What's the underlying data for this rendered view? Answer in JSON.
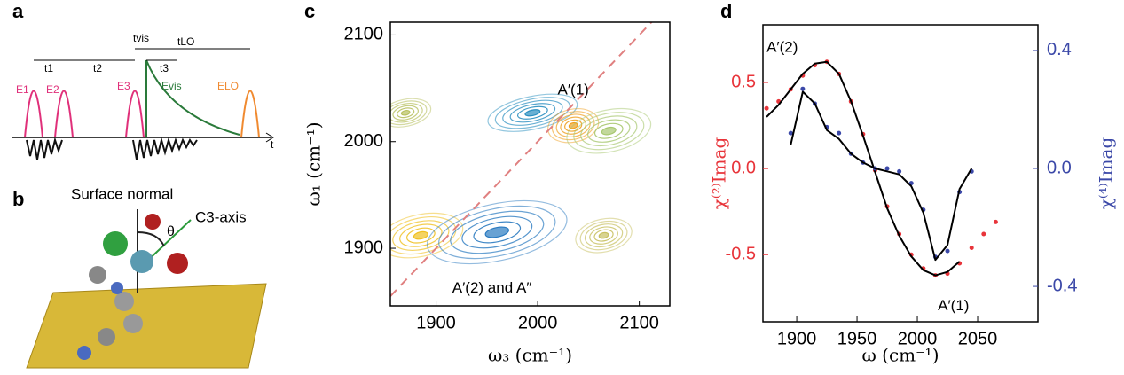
{
  "diagram": {
    "panel_a": {
      "label": "a",
      "t1": "t1",
      "t2": "t2",
      "t3": "t3",
      "tvis": "tvis",
      "tLO": "tLO",
      "E1": "E1",
      "E2": "E2",
      "E3": "E3",
      "Evis": "Evis",
      "ELO": "ELO",
      "t": "t"
    },
    "panel_b": {
      "label": "b",
      "surface_normal": "Surface normal",
      "c3_axis": "C3-axis",
      "theta": "θ"
    }
  },
  "chart_data": [
    {
      "type": "contour",
      "panel": "c",
      "x_label": "ω₃ (cm⁻¹)",
      "y_label": "ω₁ (cm⁻¹)",
      "xlim": [
        1855,
        2130
      ],
      "ylim": [
        1846,
        2112
      ],
      "xticks": [
        1900,
        2000,
        2100
      ],
      "yticks": [
        1900,
        2000,
        2100
      ],
      "diagonal": {
        "color": "#e08080"
      },
      "peaks": [
        {
          "x": 1995,
          "y": 2027,
          "sx": 32,
          "sy": 11,
          "color": "#2a8fc0"
        },
        {
          "x": 2035,
          "y": 2015,
          "sx": 18,
          "sy": 11,
          "color": "#f0a020"
        },
        {
          "x": 1870,
          "y": 2027,
          "sx": 18,
          "sy": 9,
          "color": "#b8c060"
        },
        {
          "x": 2070,
          "y": 2010,
          "sx": 30,
          "sy": 14,
          "color": "#a8c870"
        },
        {
          "x": 1885,
          "y": 1912,
          "sx": 30,
          "sy": 14,
          "color": "#f0c020"
        },
        {
          "x": 1960,
          "y": 1915,
          "sx": 50,
          "sy": 19,
          "color": "#2a7ac0"
        },
        {
          "x": 2065,
          "y": 1912,
          "sx": 20,
          "sy": 11,
          "color": "#c8c060"
        }
      ],
      "annotations": [
        {
          "text": "A′(1)",
          "x": 2035,
          "y": 2048
        },
        {
          "text": "A′(2) and A″",
          "x": 1955,
          "y": 1862
        }
      ]
    },
    {
      "type": "line",
      "panel": "d",
      "x_label": "ω (cm⁻¹)",
      "y_label": "χ⁽²⁾Imag",
      "y2_label": "χ⁽⁴⁾Imag",
      "xlim": [
        1872,
        2100
      ],
      "ylim": [
        -0.89,
        0.835
      ],
      "y2lim": [
        -0.52,
        0.487
      ],
      "xticks": [
        1900,
        1950,
        2000,
        2050
      ],
      "yticks": [
        0.5,
        {
          "value": 0,
          "label": "0.0"
        },
        -0.5
      ],
      "y2ticks": [
        0.4,
        {
          "value": 0,
          "label": "0.0"
        },
        -0.4
      ],
      "y_color": "#e8343a",
      "y2_color": "#3b48a8",
      "x": [
        1875,
        1885,
        1895,
        1905,
        1915,
        1925,
        1935,
        1945,
        1955,
        1965,
        1975,
        1985,
        1995,
        2005,
        2015,
        2025,
        2035,
        2045,
        2055,
        2065
      ],
      "series": [
        {
          "color": "#e8343a",
          "style": "dots",
          "values": [
            0.35,
            0.39,
            0.46,
            0.54,
            0.6,
            0.62,
            0.55,
            0.39,
            0.2,
            -0.01,
            -0.22,
            -0.38,
            -0.5,
            -0.58,
            -0.62,
            -0.61,
            -0.55,
            -0.46,
            -0.38,
            -0.31
          ]
        },
        {
          "color": "#000000",
          "style": "line",
          "values": [
            0.3,
            0.37,
            0.46,
            0.55,
            0.61,
            0.62,
            0.55,
            0.39,
            0.19,
            -0.02,
            -0.23,
            -0.39,
            -0.51,
            -0.59,
            -0.62,
            -0.6,
            -0.54,
            null,
            null,
            null
          ]
        },
        {
          "color": "#3b48a8",
          "style": "dots",
          "axis": "y2",
          "values": [
            null,
            null,
            0.12,
            0.27,
            0.22,
            0.14,
            0.12,
            0.05,
            0.02,
            0,
            0,
            -0.01,
            -0.05,
            -0.14,
            -0.3,
            -0.28,
            -0.08,
            -0.01,
            null,
            null
          ]
        },
        {
          "color": "#000000",
          "style": "line",
          "axis": "y2",
          "values": [
            null,
            null,
            0.08,
            0.26,
            0.22,
            0.13,
            0.1,
            0.05,
            0.02,
            0,
            -0.01,
            -0.02,
            -0.06,
            -0.15,
            -0.31,
            -0.26,
            -0.07,
            0,
            null,
            null
          ]
        }
      ],
      "annotations": [
        {
          "text": "A′(2)",
          "x": 1888,
          "y": 0.7
        },
        {
          "text": "A′(1)",
          "x": 2030,
          "y": -0.8
        }
      ]
    }
  ]
}
